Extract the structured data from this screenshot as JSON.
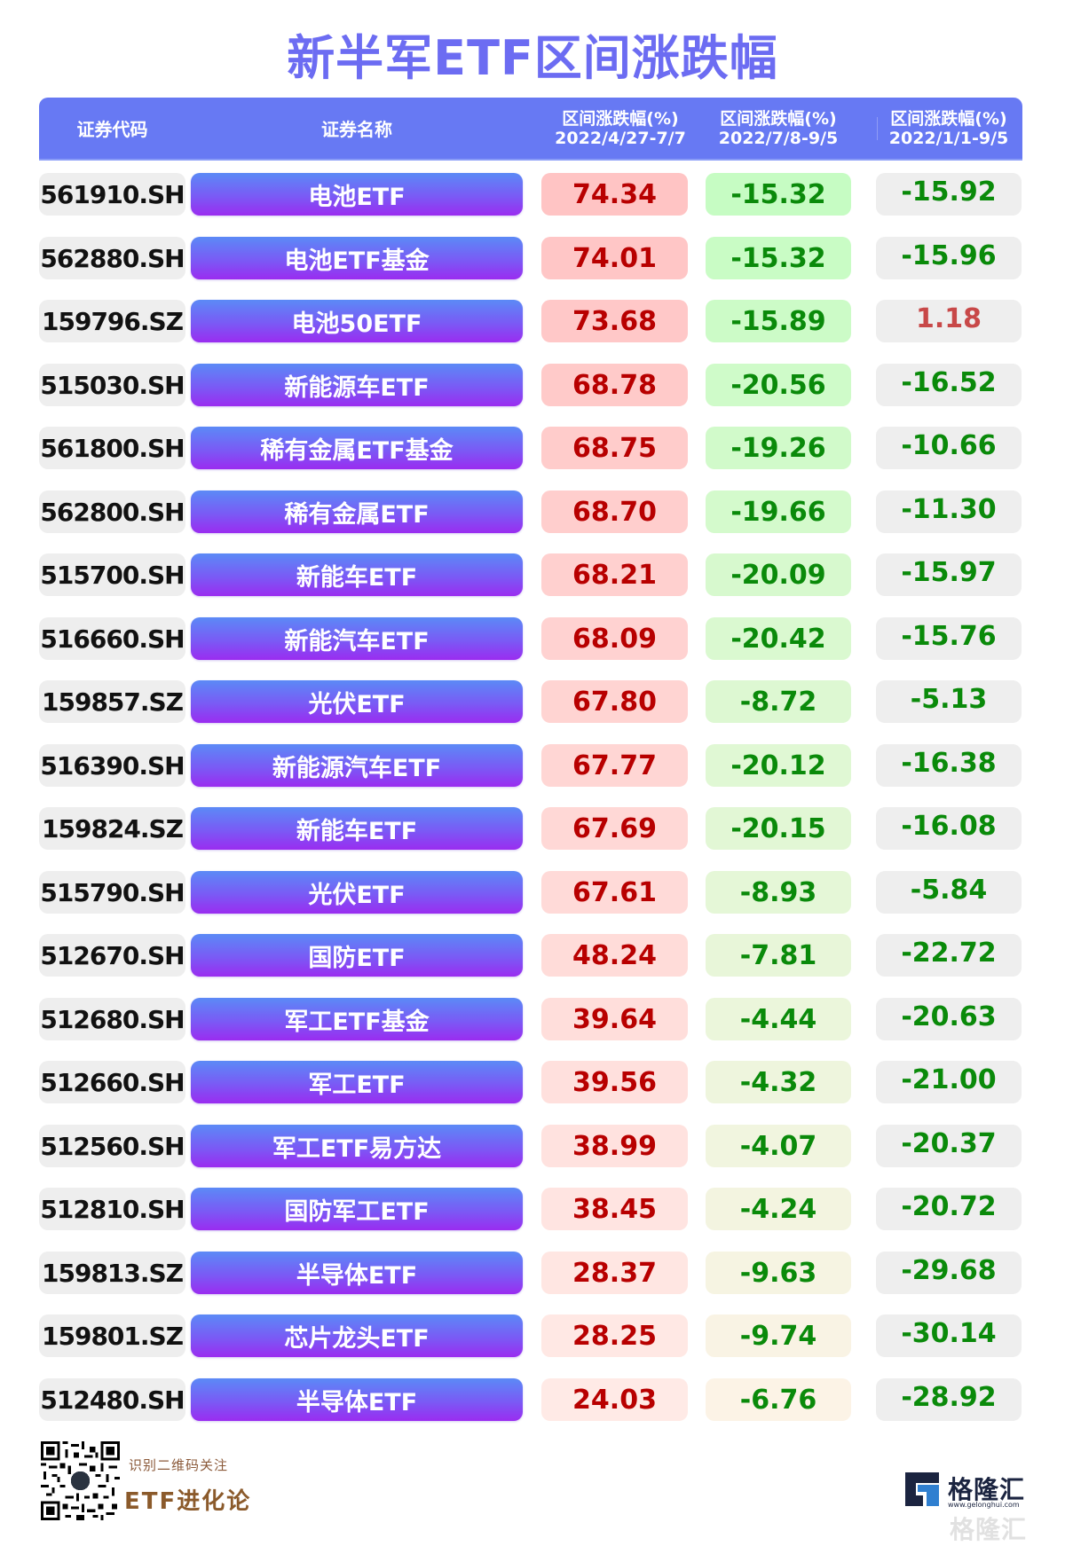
{
  "title": "新半军ETF区间涨跌幅",
  "header": {
    "code_label": "证券代码",
    "name_label": "证券名称",
    "period1": {
      "line1": "区间涨跌幅(%)",
      "line2": "2022/4/27-7/7"
    },
    "period2": {
      "line1": "区间涨跌幅(%)",
      "line2": "2022/7/8-9/5"
    },
    "period3": {
      "line1": "区间涨跌幅(%)",
      "line2": "2022/1/1-9/5"
    }
  },
  "colors": {
    "title": "#6c6cf2",
    "header_bg": "#6779f3",
    "up_text": "#b80000",
    "down_text": "#0a8a0a",
    "name_gradient_top": "#5b8af6",
    "name_gradient_bottom": "#9a2cf0"
  },
  "rows": [
    {
      "code": "561910.SH",
      "name": "电池ETF",
      "p1": "74.34",
      "p2": "-15.32",
      "p3": "-15.92"
    },
    {
      "code": "562880.SH",
      "name": "电池ETF基金",
      "p1": "74.01",
      "p2": "-15.32",
      "p3": "-15.96"
    },
    {
      "code": "159796.SZ",
      "name": "电池50ETF",
      "p1": "73.68",
      "p2": "-15.89",
      "p3": "1.18"
    },
    {
      "code": "515030.SH",
      "name": "新能源车ETF",
      "p1": "68.78",
      "p2": "-20.56",
      "p3": "-16.52"
    },
    {
      "code": "561800.SH",
      "name": "稀有金属ETF基金",
      "p1": "68.75",
      "p2": "-19.26",
      "p3": "-10.66"
    },
    {
      "code": "562800.SH",
      "name": "稀有金属ETF",
      "p1": "68.70",
      "p2": "-19.66",
      "p3": "-11.30"
    },
    {
      "code": "515700.SH",
      "name": "新能车ETF",
      "p1": "68.21",
      "p2": "-20.09",
      "p3": "-15.97"
    },
    {
      "code": "516660.SH",
      "name": "新能汽车ETF",
      "p1": "68.09",
      "p2": "-20.42",
      "p3": "-15.76"
    },
    {
      "code": "159857.SZ",
      "name": "光伏ETF",
      "p1": "67.80",
      "p2": "-8.72",
      "p3": "-5.13"
    },
    {
      "code": "516390.SH",
      "name": "新能源汽车ETF",
      "p1": "67.77",
      "p2": "-20.12",
      "p3": "-16.38"
    },
    {
      "code": "159824.SZ",
      "name": "新能车ETF",
      "p1": "67.69",
      "p2": "-20.15",
      "p3": "-16.08"
    },
    {
      "code": "515790.SH",
      "name": "光伏ETF",
      "p1": "67.61",
      "p2": "-8.93",
      "p3": "-5.84"
    },
    {
      "code": "512670.SH",
      "name": "国防ETF",
      "p1": "48.24",
      "p2": "-7.81",
      "p3": "-22.72"
    },
    {
      "code": "512680.SH",
      "name": "军工ETF基金",
      "p1": "39.64",
      "p2": "-4.44",
      "p3": "-20.63"
    },
    {
      "code": "512660.SH",
      "name": "军工ETF",
      "p1": "39.56",
      "p2": "-4.32",
      "p3": "-21.00"
    },
    {
      "code": "512560.SH",
      "name": "军工ETF易方达",
      "p1": "38.99",
      "p2": "-4.07",
      "p3": "-20.37"
    },
    {
      "code": "512810.SH",
      "name": "国防军工ETF",
      "p1": "38.45",
      "p2": "-4.24",
      "p3": "-20.72"
    },
    {
      "code": "159813.SZ",
      "name": "半导体ETF",
      "p1": "28.37",
      "p2": "-9.63",
      "p3": "-29.68"
    },
    {
      "code": "159801.SZ",
      "name": "芯片龙头ETF",
      "p1": "28.25",
      "p2": "-9.74",
      "p3": "-30.14"
    },
    {
      "code": "512480.SH",
      "name": "半导体ETF",
      "p1": "24.03",
      "p2": "-6.76",
      "p3": "-28.92"
    }
  ],
  "footer": {
    "qr_icon": "qr-code-icon",
    "hint": "识别二维码关注",
    "brand": "ETF进化论",
    "logo_text": "格隆汇",
    "logo_url": "www.gelonghui.com",
    "watermark": "格隆汇"
  }
}
